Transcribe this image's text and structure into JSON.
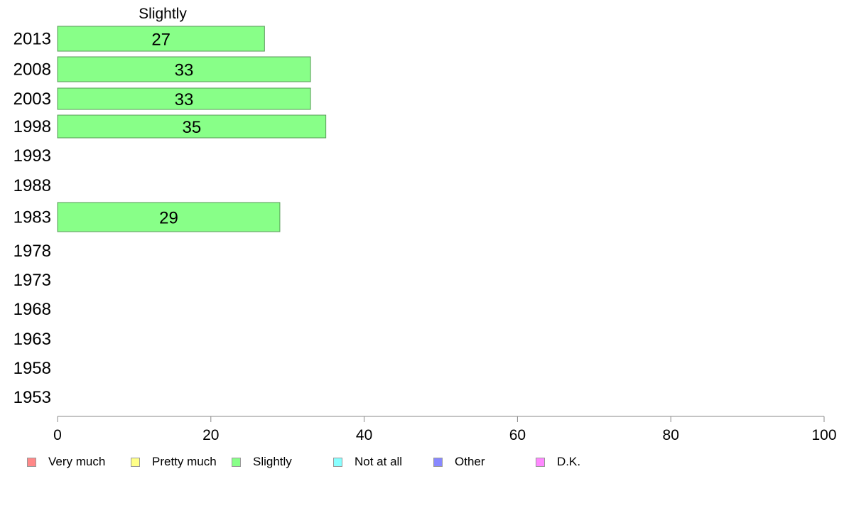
{
  "chart_data": {
    "type": "bar",
    "orientation": "horizontal",
    "title": "Slightly",
    "categories": [
      "2013",
      "2008",
      "2003",
      "1998",
      "1993",
      "1988",
      "1983",
      "1978",
      "1973",
      "1968",
      "1963",
      "1958",
      "1953"
    ],
    "values": [
      27,
      33,
      33,
      35,
      null,
      null,
      29,
      null,
      null,
      null,
      null,
      null,
      null
    ],
    "value_labels": [
      "27",
      "33",
      "33",
      "35",
      "",
      "",
      "29",
      "",
      "",
      "",
      "",
      "",
      ""
    ],
    "xlim": [
      0,
      100
    ],
    "xticks": [
      0,
      20,
      40,
      60,
      80,
      100
    ],
    "bar_color": "#88ff88",
    "bar_border_color": "#5a9a5a",
    "grid": false,
    "legend_position": "bottom",
    "legend": [
      {
        "label": "Very much",
        "color": "#ff8888"
      },
      {
        "label": "Pretty much",
        "color": "#ffff88"
      },
      {
        "label": "Slightly",
        "color": "#88ff88"
      },
      {
        "label": "Not at all",
        "color": "#88ffff"
      },
      {
        "label": "Other",
        "color": "#8888ff"
      },
      {
        "label": "D.K.",
        "color": "#ff88ff"
      }
    ]
  }
}
